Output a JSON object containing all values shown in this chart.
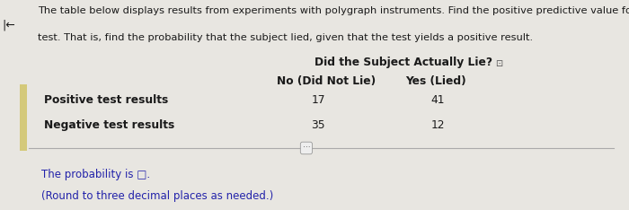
{
  "title_line1": "The table below displays results from experiments with polygraph instruments. Find the positive predictive value for the",
  "title_line2": "test. That is, find the probability that the subject lied, given that the test yields a positive result.",
  "header1": "Did the Subject Actually Lie?",
  "col1_header": "No (Did Not Lie)",
  "col2_header": "Yes (Lied)",
  "row1_label": "Positive test results",
  "row2_label": "Negative test results",
  "row1_col1": "17",
  "row1_col2": "41",
  "row2_col1": "35",
  "row2_col2": "12",
  "footer_line1": "The probability is □.",
  "footer_line2": "(Round to three decimal places as needed.)",
  "bg_color": "#e8e6e1",
  "text_color": "#1a1a1a",
  "footer_color": "#2222aa",
  "left_bar_color": "#d4c97a",
  "sep_line_color": "#aaaaaa",
  "font_size_title": 8.2,
  "font_size_body": 8.8,
  "font_size_footer": 8.5
}
